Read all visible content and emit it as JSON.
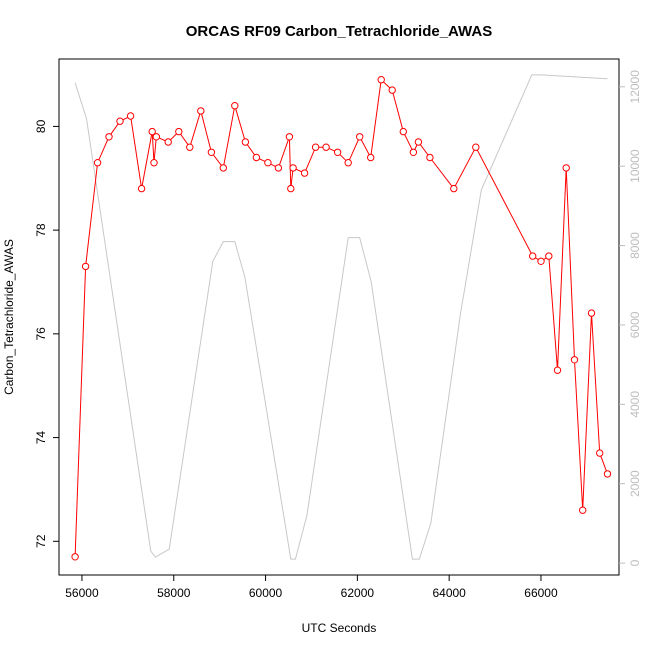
{
  "chart_data": {
    "type": "line",
    "title": "ORCAS RF09 Carbon_Tetrachloride_AWAS",
    "xlabel": "UTC Seconds",
    "ylabel": "Carbon_Tetrachloride_AWAS",
    "xlim": [
      55500,
      67700
    ],
    "ylim": [
      71.35,
      81.3
    ],
    "y2lim": [
      -300,
      12700
    ],
    "x_ticks": [
      56000,
      58000,
      60000,
      62000,
      64000,
      66000
    ],
    "y_ticks": [
      72,
      74,
      76,
      78,
      80
    ],
    "y2_ticks": [
      0,
      2000,
      4000,
      6000,
      8000,
      10000,
      12000
    ],
    "x_tick_labels": [
      "56000",
      "58000",
      "60000",
      "62000",
      "64000",
      "66000"
    ],
    "y_tick_labels": [
      "72",
      "74",
      "76",
      "78",
      "80"
    ],
    "y2_tick_labels": [
      "0",
      "2000",
      "4000",
      "6000",
      "8000",
      "10000",
      "12000"
    ],
    "grid": false,
    "series": [
      {
        "role": "primary",
        "color": "#ff0000",
        "style": "line-with-open-circles",
        "x": [
          55850,
          56080,
          56340,
          56590,
          56830,
          57060,
          57300,
          57530,
          57570,
          57620,
          57880,
          58110,
          58350,
          58590,
          58820,
          59080,
          59330,
          59560,
          59800,
          60050,
          60280,
          60520,
          60550,
          60600,
          60850,
          61090,
          61320,
          61570,
          61800,
          62050,
          62290,
          62520,
          62760,
          63000,
          63220,
          63330,
          63580,
          64100,
          64580,
          65820,
          66000,
          66170,
          66360,
          66550,
          66730,
          66910,
          67100,
          67280,
          67450
        ],
        "y": [
          71.7,
          77.3,
          79.3,
          79.8,
          80.1,
          80.2,
          78.8,
          79.9,
          79.3,
          79.8,
          79.7,
          79.9,
          79.6,
          80.3,
          79.5,
          79.2,
          80.4,
          79.7,
          79.4,
          79.3,
          79.2,
          79.8,
          78.8,
          79.2,
          79.1,
          79.6,
          79.6,
          79.5,
          79.3,
          79.8,
          79.4,
          80.9,
          80.7,
          79.9,
          79.5,
          79.7,
          79.4,
          78.8,
          79.6,
          77.5,
          77.4,
          77.5,
          75.3,
          79.2,
          75.5,
          72.6,
          76.4,
          73.7,
          73.3
        ]
      },
      {
        "role": "secondary-axis",
        "color": "#c8c8c8",
        "style": "line",
        "x": [
          55850,
          56100,
          57500,
          57600,
          57900,
          58850,
          59080,
          59330,
          59550,
          60550,
          60650,
          60900,
          61800,
          62050,
          62300,
          63200,
          63350,
          63600,
          64250,
          64700,
          65800,
          66000,
          67450
        ],
        "y": [
          12100,
          11200,
          300,
          150,
          350,
          7600,
          8100,
          8100,
          7200,
          100,
          100,
          1200,
          8200,
          8200,
          7100,
          100,
          100,
          1000,
          6300,
          9400,
          12300,
          12300,
          12200
        ]
      }
    ]
  }
}
